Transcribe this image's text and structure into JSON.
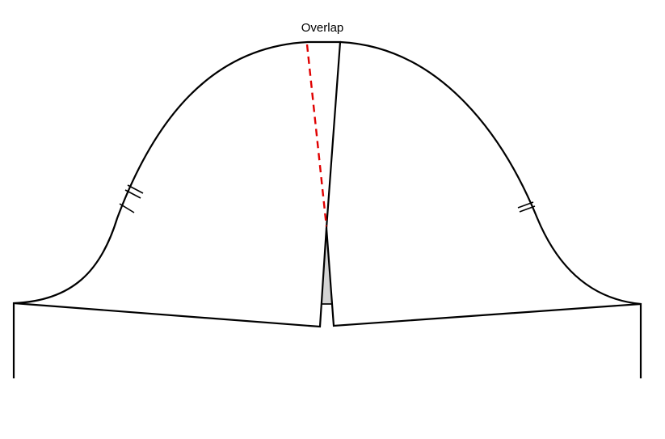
{
  "diagram": {
    "label": "Overlap",
    "colors": {
      "outline": "#000000",
      "overlap_fill": "#d3d3d3",
      "original_line": "#e00000",
      "background": "#ffffff"
    }
  }
}
